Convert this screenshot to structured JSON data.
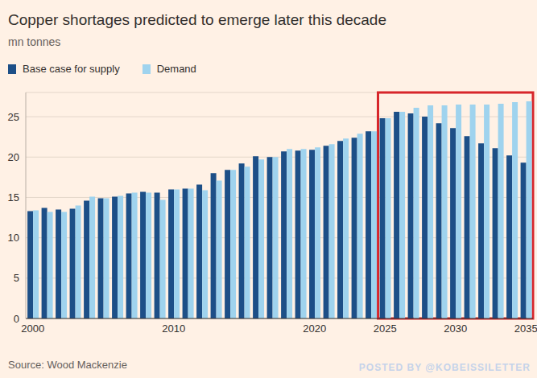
{
  "chart_data": {
    "type": "bar",
    "title": "Copper shortages predicted to emerge later this decade",
    "subtitle": "mn tonnes",
    "source": "Source: Wood Mackenzie",
    "watermark": "POSTED BY @KOBEISSILETTER",
    "categories": [
      2000,
      null,
      null,
      null,
      null,
      null,
      null,
      null,
      null,
      null,
      2010,
      null,
      null,
      null,
      null,
      null,
      null,
      null,
      null,
      null,
      2020,
      null,
      null,
      null,
      null,
      2025,
      null,
      null,
      null,
      null,
      2030,
      null,
      null,
      null,
      null,
      2035
    ],
    "series": [
      {
        "name": "Base case for supply",
        "color": "#1d4f87",
        "values": [
          13.3,
          13.7,
          13.5,
          13.6,
          14.6,
          14.9,
          15.1,
          15.5,
          15.7,
          15.6,
          16.0,
          16.1,
          16.6,
          18.0,
          18.4,
          19.2,
          20.1,
          20.0,
          20.7,
          20.8,
          20.9,
          21.4,
          22.0,
          22.4,
          23.2,
          24.8,
          25.6,
          25.4,
          25.0,
          24.2,
          23.6,
          22.6,
          21.7,
          21.1,
          20.2,
          19.3
        ]
      },
      {
        "name": "Demand",
        "color": "#9fd3ee",
        "values": [
          13.4,
          13.2,
          13.2,
          14.0,
          15.1,
          14.9,
          15.2,
          15.6,
          15.6,
          14.7,
          16.0,
          16.1,
          15.9,
          17.1,
          18.4,
          18.8,
          19.7,
          20.0,
          21.0,
          21.0,
          21.2,
          21.6,
          22.3,
          22.9,
          23.2,
          24.8,
          25.6,
          26.1,
          26.4,
          26.4,
          26.5,
          26.5,
          26.5,
          26.6,
          26.8,
          26.9
        ]
      }
    ],
    "ylim": [
      0,
      28
    ],
    "yticks": [
      0,
      5,
      10,
      15,
      20,
      25
    ],
    "grid": true,
    "legend": "top-left",
    "highlight": {
      "x": [
        2025,
        2035
      ],
      "color": "#d7262b"
    }
  }
}
